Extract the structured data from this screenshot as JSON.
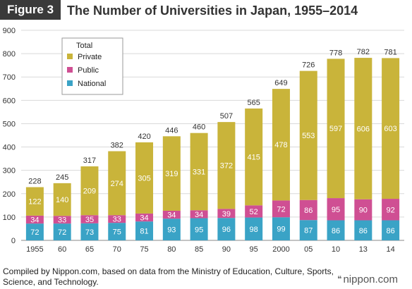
{
  "header": {
    "figure_label": "Figure 3",
    "title": "The Number of Universities in Japan, 1955–2014"
  },
  "chart_data": {
    "type": "bar",
    "stacked": true,
    "categories": [
      "1955",
      "60",
      "65",
      "70",
      "75",
      "80",
      "85",
      "90",
      "95",
      "2000",
      "05",
      "10",
      "13",
      "14"
    ],
    "series": [
      {
        "name": "National",
        "color": "#3aa3c6",
        "values": [
          72,
          72,
          73,
          75,
          81,
          93,
          95,
          96,
          98,
          99,
          87,
          86,
          86,
          86
        ]
      },
      {
        "name": "Public",
        "color": "#cf4f93",
        "values": [
          34,
          33,
          35,
          33,
          34,
          34,
          34,
          39,
          52,
          72,
          86,
          95,
          90,
          92
        ]
      },
      {
        "name": "Private",
        "color": "#c9b43a",
        "values": [
          122,
          140,
          209,
          274,
          305,
          319,
          331,
          372,
          415,
          478,
          553,
          597,
          606,
          603
        ]
      }
    ],
    "totals": [
      228,
      245,
      317,
      382,
      420,
      446,
      460,
      507,
      565,
      649,
      726,
      778,
      782,
      781
    ],
    "legend_title": "Total",
    "legend_order": [
      "Private",
      "Public",
      "National"
    ],
    "legend_position": "top-left",
    "y_ticks": [
      0,
      100,
      200,
      300,
      400,
      500,
      600,
      700,
      800,
      900
    ],
    "ylim": [
      0,
      900
    ],
    "grid": true
  },
  "footer": {
    "source": "Compiled by Nippon.com, based on data from the Ministry of Education, Culture, Sports, Science, and Technology.",
    "brand": "nippon.com",
    "brand_icon": "brand-quote-icon"
  }
}
